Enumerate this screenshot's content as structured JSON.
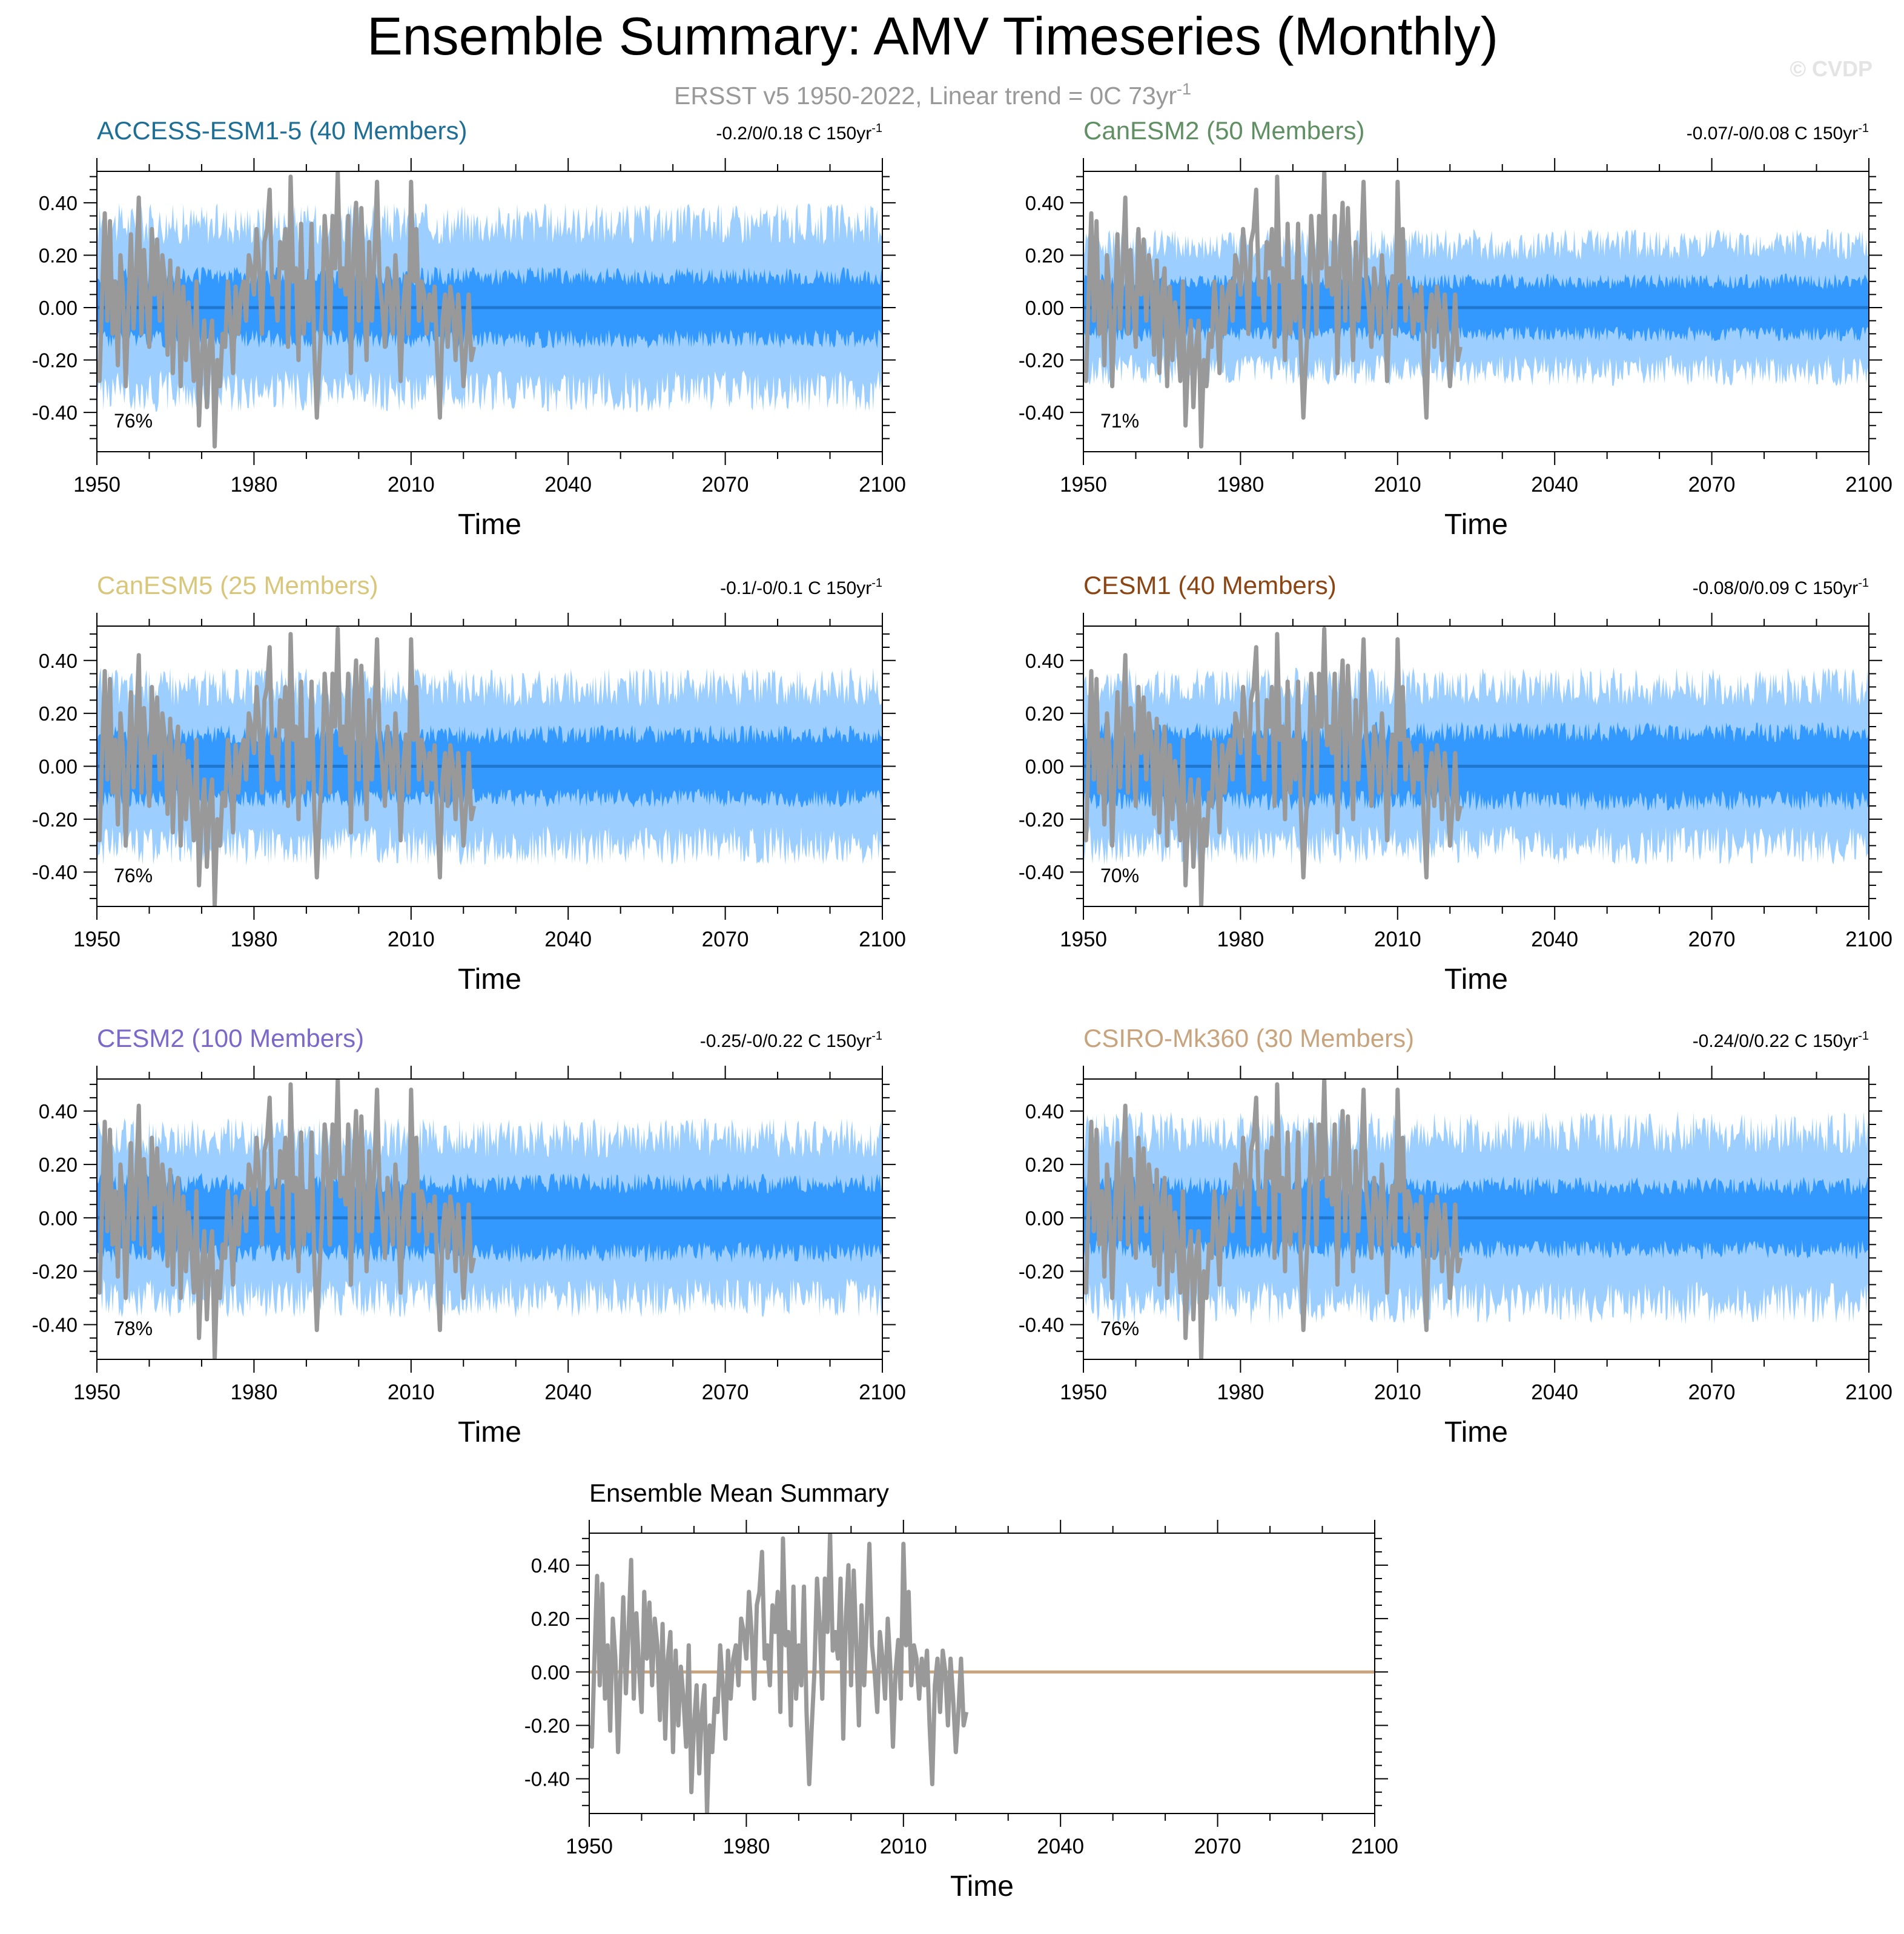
{
  "page": {
    "title": "Ensemble Summary: AMV Timeseries (Monthly)",
    "subtitle_main": "ERSST v5 1950-2022, Linear trend = 0C 73yr",
    "subtitle_sup": "-1",
    "watermark": "© CVDP"
  },
  "colors": {
    "band_outer": "#9ccfff",
    "band_inner": "#3399ff",
    "ens_mean_line": "#1f77d0",
    "obs_line": "#999999",
    "summary_mean_line": "#c8a47e",
    "axis": "#000000"
  },
  "chart_data": [
    {
      "type": "line",
      "panel": "access",
      "title": "ACCESS-ESM1-5 (40 Members)",
      "title_color": "#1e6e96",
      "trend_label": "-0.2/0/0.18 C 150yr",
      "trend_sup": "-1",
      "pct_label": "76%",
      "xlabel": "Time",
      "ylabel": "",
      "xlim": [
        1950,
        2100
      ],
      "ylim": [
        -0.55,
        0.52
      ],
      "xticks": [
        "1950",
        "1980",
        "2010",
        "2040",
        "2070",
        "2100"
      ],
      "yticks": [
        "0.40",
        "0.20",
        "0.00",
        "-0.20",
        "-0.40"
      ],
      "band_outer": [
        -0.32,
        0.32
      ],
      "band_inner": [
        -0.12,
        0.12
      ],
      "ensemble_mean": 0.0,
      "shaded_years": [
        1950,
        2100
      ]
    },
    {
      "type": "line",
      "panel": "canesm2",
      "title": "CanESM2 (50 Members)",
      "title_color": "#5f8f62",
      "trend_label": "-0.07/-0/0.08 C 150yr",
      "trend_sup": "-1",
      "pct_label": "71%",
      "xlabel": "Time",
      "ylabel": "",
      "xlim": [
        1950,
        2100
      ],
      "ylim": [
        -0.55,
        0.52
      ],
      "xticks": [
        "1950",
        "1980",
        "2010",
        "2040",
        "2070",
        "2100"
      ],
      "yticks": [
        "0.40",
        "0.20",
        "0.00",
        "-0.20",
        "-0.40"
      ],
      "band_outer": [
        -0.24,
        0.24
      ],
      "band_inner": [
        -0.1,
        0.1
      ],
      "ensemble_mean": 0.0,
      "shaded_years": [
        1950,
        2100
      ]
    },
    {
      "type": "line",
      "panel": "canesm5",
      "title": "CanESM5 (25 Members)",
      "title_color": "#d8c77a",
      "trend_label": "-0.1/-0/0.1 C 150yr",
      "trend_sup": "-1",
      "pct_label": "76%",
      "xlabel": "Time",
      "ylabel": "",
      "xlim": [
        1950,
        2100
      ],
      "ylim": [
        -0.53,
        0.53
      ],
      "xticks": [
        "1950",
        "1980",
        "2010",
        "2040",
        "2070",
        "2100"
      ],
      "yticks": [
        "0.40",
        "0.20",
        "0.00",
        "-0.20",
        "-0.40"
      ],
      "band_outer": [
        -0.3,
        0.3
      ],
      "band_inner": [
        -0.12,
        0.12
      ],
      "ensemble_mean": 0.0,
      "shaded_years": [
        1950,
        2100
      ]
    },
    {
      "type": "line",
      "panel": "cesm1",
      "title": "CESM1 (40 Members)",
      "title_color": "#8b4513",
      "trend_label": "-0.08/0/0.09 C 150yr",
      "trend_sup": "-1",
      "pct_label": "70%",
      "xlabel": "Time",
      "ylabel": "",
      "xlim": [
        1950,
        2100
      ],
      "ylim": [
        -0.53,
        0.53
      ],
      "xticks": [
        "1950",
        "1980",
        "2010",
        "2040",
        "2070",
        "2100"
      ],
      "yticks": [
        "0.40",
        "0.20",
        "0.00",
        "-0.20",
        "-0.40"
      ],
      "band_outer": [
        -0.3,
        0.3
      ],
      "band_inner": [
        -0.13,
        0.13
      ],
      "ensemble_mean": 0.0,
      "shaded_years": [
        1950,
        2100
      ]
    },
    {
      "type": "line",
      "panel": "cesm2",
      "title": "CESM2 (100 Members)",
      "title_color": "#7b68c8",
      "trend_label": "-0.25/-0/0.22 C 150yr",
      "trend_sup": "-1",
      "pct_label": "78%",
      "xlabel": "Time",
      "ylabel": "",
      "xlim": [
        1950,
        2100
      ],
      "ylim": [
        -0.53,
        0.52
      ],
      "xticks": [
        "1950",
        "1980",
        "2010",
        "2040",
        "2070",
        "2100"
      ],
      "yticks": [
        "0.40",
        "0.20",
        "0.00",
        "-0.20",
        "-0.40"
      ],
      "band_outer": [
        -0.3,
        0.3
      ],
      "band_inner": [
        -0.13,
        0.13
      ],
      "ensemble_mean": 0.0,
      "shaded_years": [
        1950,
        2100
      ]
    },
    {
      "type": "line",
      "panel": "csiro",
      "title": "CSIRO-Mk360 (30 Members)",
      "title_color": "#c8a47e",
      "trend_label": "-0.24/0/0.22 C 150yr",
      "trend_sup": "-1",
      "pct_label": "76%",
      "xlabel": "Time",
      "ylabel": "",
      "xlim": [
        1950,
        2100
      ],
      "ylim": [
        -0.53,
        0.52
      ],
      "xticks": [
        "1950",
        "1980",
        "2010",
        "2040",
        "2070",
        "2100"
      ],
      "yticks": [
        "0.40",
        "0.20",
        "0.00",
        "-0.20",
        "-0.40"
      ],
      "band_outer": [
        -0.32,
        0.32
      ],
      "band_inner": [
        -0.12,
        0.12
      ],
      "ensemble_mean": 0.0,
      "shaded_years": [
        1950,
        2100
      ]
    },
    {
      "type": "line",
      "panel": "summary",
      "title": "Ensemble Mean Summary",
      "title_color": "#000000",
      "trend_label": "",
      "trend_sup": "",
      "pct_label": "",
      "xlabel": "Time",
      "ylabel": "",
      "xlim": [
        1950,
        2100
      ],
      "ylim": [
        -0.53,
        0.52
      ],
      "xticks": [
        "1950",
        "1980",
        "2010",
        "2040",
        "2070",
        "2100"
      ],
      "yticks": [
        "0.40",
        "0.20",
        "0.00",
        "-0.20",
        "-0.40"
      ],
      "band_outer": null,
      "band_inner": null,
      "ensemble_mean": 0.0,
      "shaded_years": null
    }
  ],
  "observations": {
    "name": "ERSST v5",
    "years": [
      1950,
      2022
    ],
    "x": [
      1950.0,
      1950.5,
      1951.0,
      1951.5,
      1952.0,
      1952.5,
      1953.0,
      1953.5,
      1954.0,
      1954.5,
      1955.0,
      1955.5,
      1956.0,
      1956.5,
      1957.0,
      1957.5,
      1958.0,
      1958.5,
      1959.0,
      1959.5,
      1960.0,
      1960.5,
      1961.0,
      1961.5,
      1962.0,
      1962.5,
      1963.0,
      1963.5,
      1964.0,
      1964.5,
      1965.0,
      1965.5,
      1966.0,
      1966.5,
      1967.0,
      1967.5,
      1968.0,
      1968.5,
      1969.0,
      1969.5,
      1970.0,
      1970.5,
      1971.0,
      1971.5,
      1972.0,
      1972.5,
      1973.0,
      1973.5,
      1974.0,
      1974.5,
      1975.0,
      1975.5,
      1976.0,
      1976.5,
      1977.0,
      1977.5,
      1978.0,
      1978.5,
      1979.0,
      1979.5,
      1980.0,
      1980.5,
      1981.0,
      1981.5,
      1982.0,
      1982.5,
      1983.0,
      1983.5,
      1984.0,
      1984.5,
      1985.0,
      1985.5,
      1986.0,
      1986.5,
      1987.0,
      1987.5,
      1988.0,
      1988.5,
      1989.0,
      1989.5,
      1990.0,
      1990.5,
      1991.0,
      1991.5,
      1992.0,
      1992.5,
      1993.0,
      1993.5,
      1994.0,
      1994.5,
      1995.0,
      1995.5,
      1996.0,
      1996.5,
      1997.0,
      1997.5,
      1998.0,
      1998.5,
      1999.0,
      1999.5,
      2000.0,
      2000.5,
      2001.0,
      2001.5,
      2002.0,
      2002.5,
      2003.0,
      2003.5,
      2004.0,
      2004.5,
      2005.0,
      2005.5,
      2006.0,
      2006.5,
      2007.0,
      2007.5,
      2008.0,
      2008.5,
      2009.0,
      2009.5,
      2010.0,
      2010.5,
      2011.0,
      2011.5,
      2012.0,
      2012.5,
      2013.0,
      2013.5,
      2014.0,
      2014.5,
      2015.0,
      2015.5,
      2016.0,
      2016.5,
      2017.0,
      2017.5,
      2018.0,
      2018.5,
      2019.0,
      2019.5,
      2020.0,
      2020.5,
      2021.0,
      2021.5,
      2022.0
    ],
    "y": [
      -0.2,
      -0.28,
      0.05,
      0.36,
      -0.05,
      0.33,
      -0.1,
      0.1,
      -0.22,
      0.2,
      0.05,
      -0.3,
      0.0,
      0.28,
      -0.08,
      0.15,
      0.42,
      -0.1,
      0.22,
      0.02,
      -0.15,
      0.3,
      0.05,
      0.26,
      -0.05,
      0.2,
      0.1,
      -0.18,
      0.18,
      -0.25,
      0.05,
      0.15,
      -0.3,
      0.08,
      -0.2,
      0.02,
      -0.1,
      -0.28,
      0.1,
      -0.45,
      -0.2,
      -0.05,
      -0.38,
      -0.15,
      -0.05,
      -0.53,
      -0.2,
      -0.3,
      -0.1,
      -0.15,
      0.1,
      -0.05,
      -0.25,
      0.08,
      -0.1,
      0.05,
      0.1,
      -0.05,
      0.2,
      0.15,
      0.05,
      0.3,
      0.15,
      -0.1,
      0.25,
      0.3,
      0.45,
      0.05,
      0.1,
      -0.05,
      0.25,
      0.15,
      0.3,
      -0.15,
      0.5,
      0.1,
      0.15,
      -0.2,
      0.32,
      -0.1,
      0.1,
      -0.05,
      0.32,
      -0.15,
      -0.42,
      -0.2,
      0.0,
      0.35,
      0.18,
      -0.1,
      0.35,
      0.15,
      0.52,
      0.08,
      0.15,
      0.05,
      0.35,
      -0.25,
      0.2,
      0.4,
      -0.05,
      0.38,
      0.1,
      -0.2,
      0.25,
      -0.05,
      0.2,
      0.48,
      0.1,
      0.0,
      -0.15,
      0.15,
      0.05,
      -0.1,
      0.2,
      0.02,
      -0.28,
      0.0,
      0.12,
      -0.1,
      0.48,
      0.1,
      0.3,
      -0.05,
      0.1,
      0.05,
      -0.1,
      0.05,
      -0.05,
      0.08,
      -0.2,
      -0.42,
      -0.05,
      0.05,
      -0.15,
      0.08,
      0.0,
      -0.2,
      0.05,
      -0.1,
      -0.3,
      -0.15,
      0.05,
      -0.2,
      -0.15
    ]
  }
}
